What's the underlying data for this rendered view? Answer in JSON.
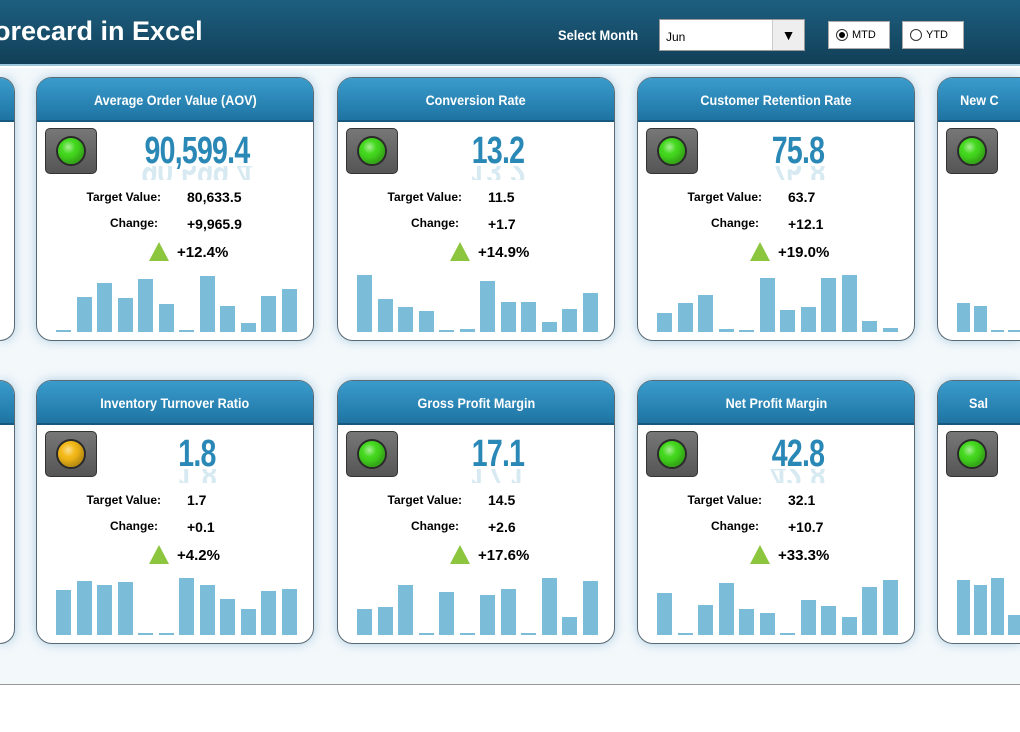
{
  "header": {
    "title": "orecard in Excel",
    "select_month_label": "Select Month",
    "month_value": "Jun",
    "dropdown_icon": "triangle-down-icon",
    "mtd_label": "MTD",
    "ytd_label": "YTD",
    "selected_mode": "MTD"
  },
  "labels": {
    "target": "Target Value:",
    "change": "Change:"
  },
  "colors": {
    "green": "#44d91e",
    "yellow": "#f4b918",
    "bars": "#7bbcd8",
    "up_arrow": "#8cc63f",
    "value": "#2a88b6"
  },
  "cards": [
    {
      "title": "Average Order Value (AOV)",
      "value": "90,599.4",
      "target": "80,633.5",
      "change": "+9,965.9",
      "pct": "+12.4%",
      "status": "green",
      "trend": "up",
      "bars": [
        2,
        35,
        49,
        34,
        53,
        28,
        0.5,
        56,
        26,
        9,
        36,
        43
      ]
    },
    {
      "title": "Conversion Rate",
      "value": "13.2",
      "target": "11.5",
      "change": "+1.7",
      "pct": "+14.9%",
      "status": "green",
      "trend": "up",
      "bars": [
        57,
        33,
        25,
        21,
        1,
        3,
        51,
        30,
        30,
        10,
        23,
        39
      ]
    },
    {
      "title": "Customer Retention Rate",
      "value": "75.8",
      "target": "63.7",
      "change": "+12.1",
      "pct": "+19.0%",
      "status": "green",
      "trend": "up",
      "bars": [
        19,
        29,
        37,
        3,
        1,
        54,
        22,
        25,
        54,
        57,
        11,
        4
      ]
    },
    {
      "title": "New C",
      "status": "green",
      "bars": [
        29,
        26,
        1,
        1
      ]
    },
    {
      "title": "Inventory Turnover Ratio",
      "value": "1.8",
      "target": "1.7",
      "change": "+0.1",
      "pct": "+4.2%",
      "status": "yellow",
      "trend": "up",
      "bars": [
        45,
        54,
        50,
        53,
        1,
        1,
        57,
        50,
        36,
        26,
        44,
        46
      ]
    },
    {
      "title": "Gross Profit Margin",
      "value": "17.1",
      "target": "14.5",
      "change": "+2.6",
      "pct": "+17.6%",
      "status": "green",
      "trend": "up",
      "bars": [
        26,
        28,
        50,
        2,
        43,
        2,
        40,
        46,
        1,
        57,
        18,
        54
      ]
    },
    {
      "title": "Net Profit Margin",
      "value": "42.8",
      "target": "32.1",
      "change": "+10.7",
      "pct": "+33.3%",
      "status": "green",
      "trend": "up",
      "bars": [
        42,
        1,
        30,
        52,
        26,
        22,
        1,
        35,
        29,
        18,
        48,
        55
      ]
    },
    {
      "title": "Sal",
      "status": "green",
      "bars": [
        55,
        50,
        57,
        20
      ]
    }
  ]
}
